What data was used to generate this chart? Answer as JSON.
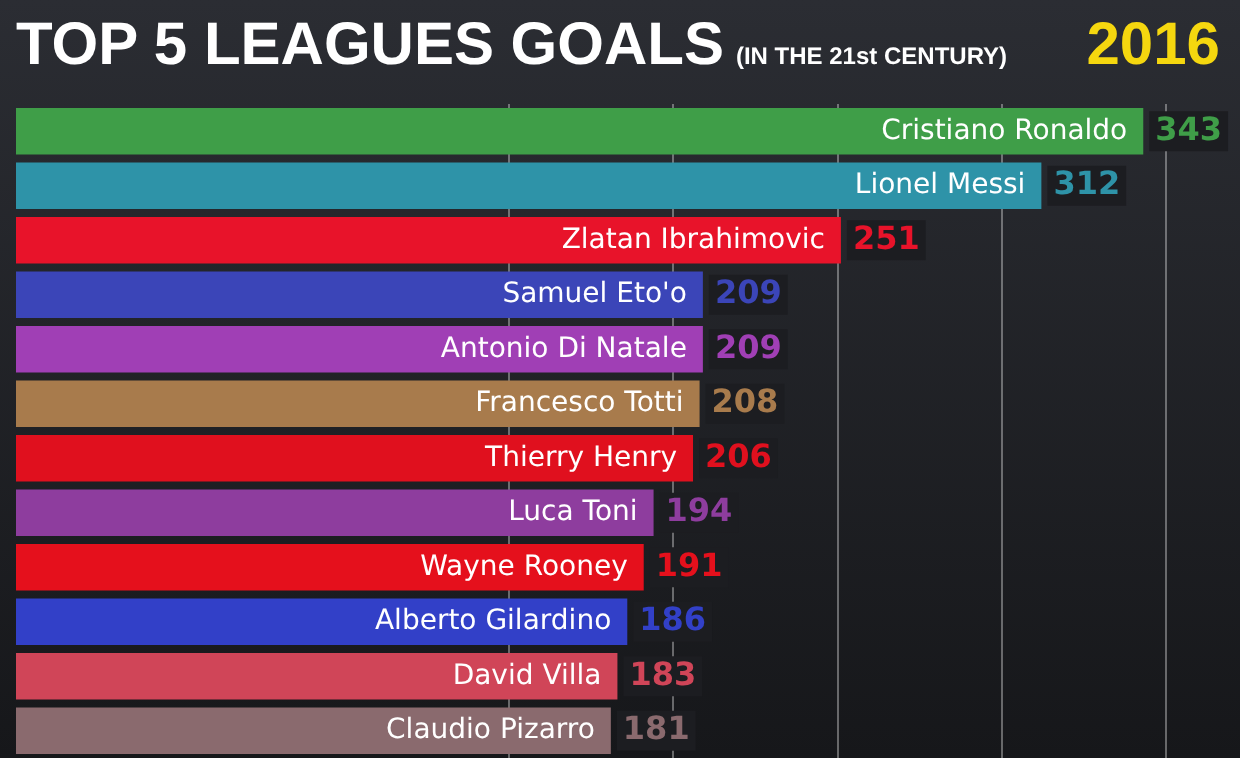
{
  "chart_data": {
    "type": "bar",
    "orientation": "horizontal",
    "title": "TOP 5 LEAGUES GOALS",
    "subtitle": "(IN THE 21st CENTURY)",
    "annotations": [
      "2016"
    ],
    "categories": [
      "Cristiano Ronaldo",
      "Lionel Messi",
      "Zlatan Ibrahimovic",
      "Samuel Eto'o",
      "Antonio Di Natale",
      "Francesco Totti",
      "Thierry Henry",
      "Luca Toni",
      "Wayne Rooney",
      "Alberto Gilardino",
      "David Villa",
      "Claudio Pizarro"
    ],
    "values": [
      343,
      312,
      251,
      209,
      209,
      208,
      206,
      194,
      191,
      186,
      183,
      181
    ],
    "colors": [
      "#3f9e48",
      "#2e93a8",
      "#e8132a",
      "#3b45b8",
      "#a03fb5",
      "#a87b4c",
      "#e0101e",
      "#8e3d9e",
      "#e5101c",
      "#3240c8",
      "#d04558",
      "#8a6a6e"
    ],
    "data_labels": true,
    "xlim": [
      0,
      370
    ],
    "xticks": [
      {
        "value": 150,
        "label": null
      },
      {
        "value": 200,
        "label": null
      },
      {
        "value": 250,
        "label": null
      },
      {
        "value": 300,
        "label": null
      },
      {
        "value": 350,
        "label": null
      }
    ],
    "grid": "x",
    "tick_labels": false,
    "legend": false
  }
}
